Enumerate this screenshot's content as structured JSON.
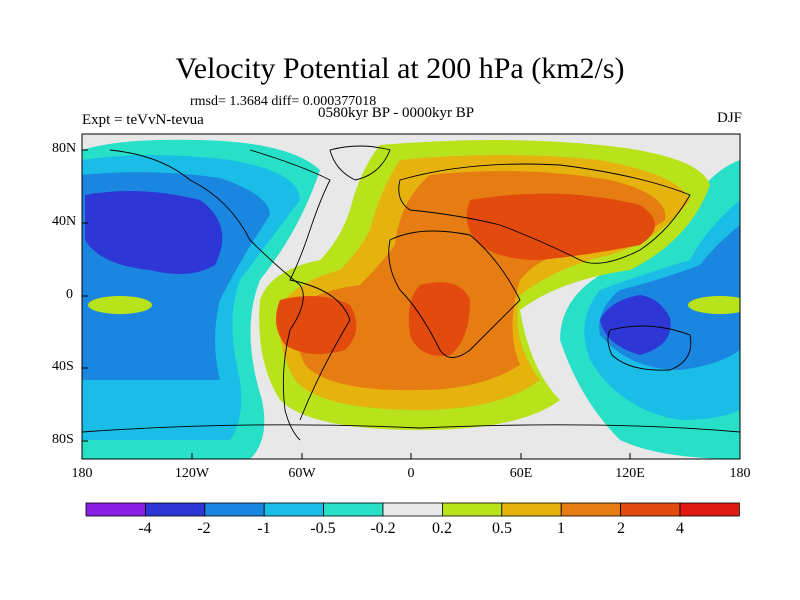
{
  "title": "Velocity Potential at 200 hPa (km2/s)",
  "stats": "rmsd= 1.3684 diff= 0.000377018",
  "experiment": "Expt = teVvN-tevua",
  "period": "0580kyr BP - 0000kyr BP",
  "season": "DJF",
  "y_axis_labels": [
    "80N",
    "40N",
    "0",
    "40S",
    "80S"
  ],
  "x_axis_labels": [
    "180",
    "120W",
    "60W",
    "0",
    "60E",
    "120E",
    "180"
  ],
  "colorbar": {
    "labels": [
      "-4",
      "-2",
      "-1",
      "-0.5",
      "-0.2",
      "0.2",
      "0.5",
      "1",
      "2",
      "4"
    ],
    "colors": [
      "#8a1fe6",
      "#2e36d6",
      "#1a86e0",
      "#19bde6",
      "#28e0c8",
      "#e8e8e8",
      "#b8e21a",
      "#e6b20e",
      "#e67d12",
      "#e24a0e",
      "#e01a10"
    ]
  }
}
